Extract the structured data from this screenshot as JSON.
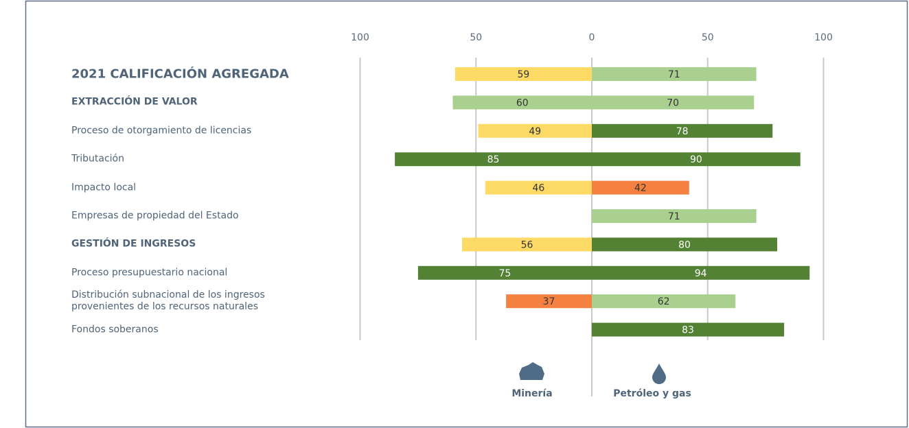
{
  "chart_data": {
    "type": "diverging_bar",
    "categories": [
      "2021 CALIFICACIÓN AGREGADA",
      "EXTRACCIÓN DE VALOR",
      "Proceso de otorgamiento de licencias",
      "Tributación",
      "Impacto local",
      "Empresas de propiedad del Estado",
      "GESTIÓN DE INGRESOS",
      "Proceso presupuestario nacional",
      "Distribución subnacional de los ingresos\nprovenientes de los recursos naturales",
      "Fondos soberanos"
    ],
    "series": [
      {
        "name": "Minería",
        "side": "left",
        "values": [
          59,
          60,
          49,
          85,
          46,
          null,
          56,
          75,
          37,
          null
        ],
        "colors": [
          "#fdd966",
          "#a9d08e",
          "#fdd966",
          "#548235",
          "#fdd966",
          null,
          "#fdd966",
          "#548235",
          "#f4813f",
          null
        ]
      },
      {
        "name": "Petróleo y gas",
        "side": "right",
        "values": [
          71,
          70,
          78,
          90,
          42,
          71,
          80,
          94,
          62,
          83
        ],
        "colors": [
          "#a9d08e",
          "#a9d08e",
          "#548235",
          "#548235",
          "#f4813f",
          "#a9d08e",
          "#548235",
          "#548235",
          "#a9d08e",
          "#548235"
        ]
      }
    ],
    "xlim": [
      -100,
      100
    ],
    "xticks": [
      {
        "value": -100,
        "label": "100"
      },
      {
        "value": -50,
        "label": "50"
      },
      0,
      50,
      100
    ],
    "grid": true
  }
}
